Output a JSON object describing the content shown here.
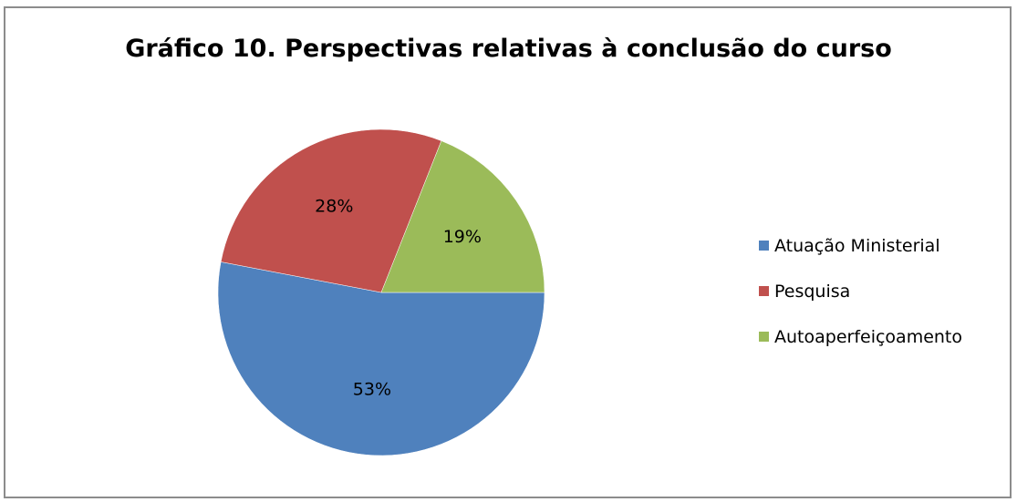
{
  "chart_data": {
    "type": "pie",
    "title": "Gráfico 10. Perspectivas relativas à conclusão do curso",
    "slices": [
      {
        "label": "Atuação Ministerial",
        "value": 53,
        "display": "53%",
        "color": "#4f81bd"
      },
      {
        "label": "Pesquisa",
        "value": 28,
        "display": "28%",
        "color": "#c0504d"
      },
      {
        "label": "Autoaperfeiçoamento",
        "value": 19,
        "display": "19%",
        "color": "#9bbb59"
      }
    ],
    "legend_position": "right",
    "start_angle_deg": 90,
    "direction": "clockwise"
  }
}
